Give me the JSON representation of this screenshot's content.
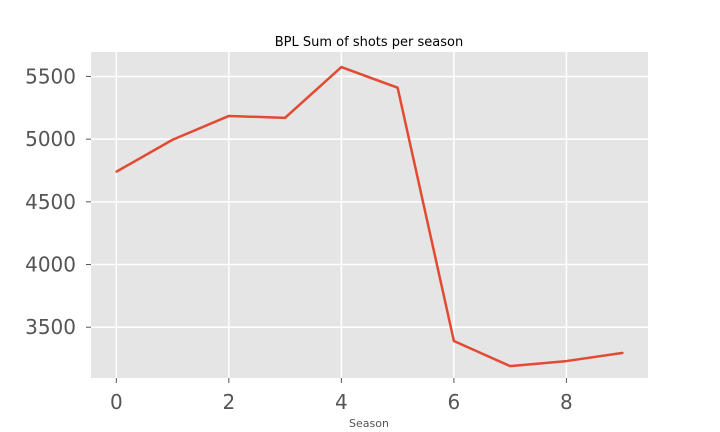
{
  "chart_data": {
    "type": "line",
    "title": "BPL Sum of shots per season",
    "xlabel": "Season",
    "ylabel": "",
    "x": [
      0,
      1,
      2,
      3,
      4,
      5,
      6,
      7,
      8,
      9
    ],
    "values": [
      4740,
      4995,
      5185,
      5170,
      5575,
      5410,
      3390,
      3190,
      3230,
      3295
    ],
    "xlim": [
      -0.45,
      9.45
    ],
    "ylim": [
      3095,
      5695
    ],
    "xticks": [
      0,
      2,
      4,
      6,
      8
    ],
    "yticks": [
      3500,
      4000,
      4500,
      5000,
      5500
    ],
    "xtick_labels": [
      "0",
      "2",
      "4",
      "6",
      "8"
    ],
    "ytick_labels": [
      "3500",
      "4000",
      "4500",
      "5000",
      "5500"
    ],
    "grid": true,
    "legend": "none",
    "colors": {
      "plot_background": "#e5e5e5",
      "grid": "#ffffff",
      "line": "#e24a33",
      "tick_text": "#555555"
    }
  }
}
